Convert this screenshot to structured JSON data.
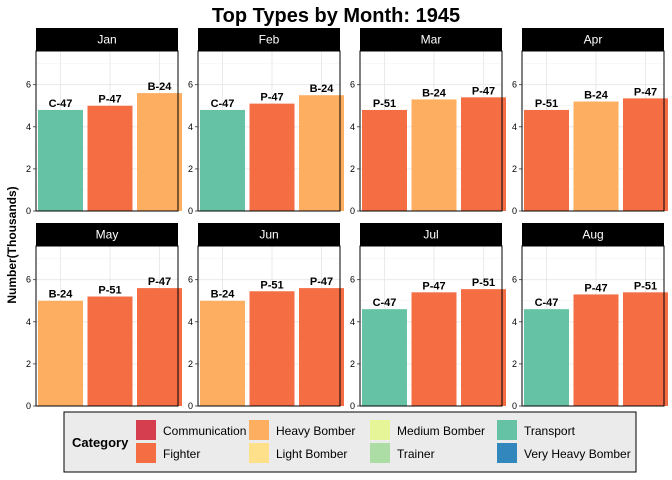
{
  "chart_data": {
    "type": "bar",
    "title": "Top Types by Month: 1945",
    "ylabel": "Number(Thousands)",
    "xlabel": "",
    "ylim": [
      0,
      7.6
    ],
    "yticks": [
      0,
      2,
      4,
      6
    ],
    "grid": true,
    "legend_position": "bottom",
    "legend_title": "Category",
    "categories_legend": [
      {
        "name": "Communication",
        "color": "#d53e4f"
      },
      {
        "name": "Fighter",
        "color": "#f46d43"
      },
      {
        "name": "Heavy Bomber",
        "color": "#fdae61"
      },
      {
        "name": "Light Bomber",
        "color": "#fee08b"
      },
      {
        "name": "Medium Bomber",
        "color": "#e6f598"
      },
      {
        "name": "Trainer",
        "color": "#abdda4"
      },
      {
        "name": "Transport",
        "color": "#66c2a5"
      },
      {
        "name": "Very Heavy Bomber",
        "color": "#3288bd"
      }
    ],
    "panels": [
      {
        "month": "Jan",
        "bars": [
          {
            "type": "C-47",
            "category": "Transport",
            "value": 4.8
          },
          {
            "type": "P-47",
            "category": "Fighter",
            "value": 5.0
          },
          {
            "type": "B-24",
            "category": "Heavy Bomber",
            "value": 5.6
          }
        ]
      },
      {
        "month": "Feb",
        "bars": [
          {
            "type": "C-47",
            "category": "Transport",
            "value": 4.8
          },
          {
            "type": "P-47",
            "category": "Fighter",
            "value": 5.1
          },
          {
            "type": "B-24",
            "category": "Heavy Bomber",
            "value": 5.5
          }
        ]
      },
      {
        "month": "Mar",
        "bars": [
          {
            "type": "P-51",
            "category": "Fighter",
            "value": 4.8
          },
          {
            "type": "B-24",
            "category": "Heavy Bomber",
            "value": 5.3
          },
          {
            "type": "P-47",
            "category": "Fighter",
            "value": 5.4
          }
        ]
      },
      {
        "month": "Apr",
        "bars": [
          {
            "type": "P-51",
            "category": "Fighter",
            "value": 4.8
          },
          {
            "type": "B-24",
            "category": "Heavy Bomber",
            "value": 5.2
          },
          {
            "type": "P-47",
            "category": "Fighter",
            "value": 5.35
          }
        ]
      },
      {
        "month": "May",
        "bars": [
          {
            "type": "B-24",
            "category": "Heavy Bomber",
            "value": 5.0
          },
          {
            "type": "P-51",
            "category": "Fighter",
            "value": 5.2
          },
          {
            "type": "P-47",
            "category": "Fighter",
            "value": 5.6
          }
        ]
      },
      {
        "month": "Jun",
        "bars": [
          {
            "type": "B-24",
            "category": "Heavy Bomber",
            "value": 5.0
          },
          {
            "type": "P-51",
            "category": "Fighter",
            "value": 5.45
          },
          {
            "type": "P-47",
            "category": "Fighter",
            "value": 5.6
          }
        ]
      },
      {
        "month": "Jul",
        "bars": [
          {
            "type": "C-47",
            "category": "Transport",
            "value": 4.6
          },
          {
            "type": "P-47",
            "category": "Fighter",
            "value": 5.4
          },
          {
            "type": "P-51",
            "category": "Fighter",
            "value": 5.55
          }
        ]
      },
      {
        "month": "Aug",
        "bars": [
          {
            "type": "C-47",
            "category": "Transport",
            "value": 4.6
          },
          {
            "type": "P-47",
            "category": "Fighter",
            "value": 5.3
          },
          {
            "type": "P-51",
            "category": "Fighter",
            "value": 5.4
          }
        ]
      }
    ]
  }
}
